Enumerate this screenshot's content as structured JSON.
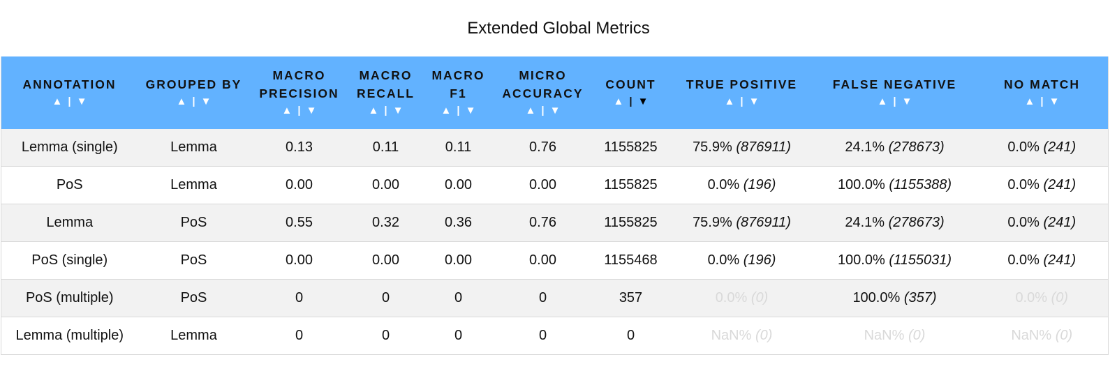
{
  "title": "Extended Global Metrics",
  "table": {
    "columns": [
      {
        "key": "annotation",
        "label_lines": [
          "ANNOTATION"
        ],
        "sort_up": "▲",
        "sort_sep": "|",
        "sort_down": "▼",
        "active": ""
      },
      {
        "key": "grouped_by",
        "label_lines": [
          "GROUPED BY"
        ],
        "sort_up": "▲",
        "sort_sep": "|",
        "sort_down": "▼",
        "active": ""
      },
      {
        "key": "macro_precision",
        "label_lines": [
          "MACRO",
          "PRECISION"
        ],
        "sort_up": "▲",
        "sort_sep": "|",
        "sort_down": "▼",
        "active": ""
      },
      {
        "key": "macro_recall",
        "label_lines": [
          "MACRO",
          "RECALL"
        ],
        "sort_up": "▲",
        "sort_sep": "|",
        "sort_down": "▼",
        "active": ""
      },
      {
        "key": "macro_f1",
        "label_lines": [
          "MACRO",
          "F1"
        ],
        "sort_up": "▲",
        "sort_sep": "|",
        "sort_down": "▼",
        "active": ""
      },
      {
        "key": "micro_accuracy",
        "label_lines": [
          "MICRO",
          "ACCURACY"
        ],
        "sort_up": "▲",
        "sort_sep": "|",
        "sort_down": "▼",
        "active": ""
      },
      {
        "key": "count",
        "label_lines": [
          "COUNT"
        ],
        "sort_up": "▲",
        "sort_sep": "|",
        "sort_down": "▼",
        "active": "down"
      },
      {
        "key": "true_positive",
        "label_lines": [
          "TRUE POSITIVE"
        ],
        "sort_up": "▲",
        "sort_sep": "|",
        "sort_down": "▼",
        "active": ""
      },
      {
        "key": "false_negative",
        "label_lines": [
          "FALSE NEGATIVE"
        ],
        "sort_up": "▲",
        "sort_sep": "|",
        "sort_down": "▼",
        "active": ""
      },
      {
        "key": "no_match",
        "label_lines": [
          "NO MATCH"
        ],
        "sort_up": "▲",
        "sort_sep": "|",
        "sort_down": "▼",
        "active": ""
      }
    ],
    "rows": [
      {
        "annotation": "Lemma (single)",
        "grouped_by": "Lemma",
        "macro_precision": "0.13",
        "macro_recall": "0.11",
        "macro_f1": "0.11",
        "micro_accuracy": "0.76",
        "count": "1155825",
        "true_positive": {
          "pct": "75.9%",
          "n": "(876911)",
          "muted": false
        },
        "false_negative": {
          "pct": "24.1%",
          "n": "(278673)",
          "muted": false
        },
        "no_match": {
          "pct": "0.0%",
          "n": "(241)",
          "muted": false
        }
      },
      {
        "annotation": "PoS",
        "grouped_by": "Lemma",
        "macro_precision": "0.00",
        "macro_recall": "0.00",
        "macro_f1": "0.00",
        "micro_accuracy": "0.00",
        "count": "1155825",
        "true_positive": {
          "pct": "0.0%",
          "n": "(196)",
          "muted": false
        },
        "false_negative": {
          "pct": "100.0%",
          "n": "(1155388)",
          "muted": false
        },
        "no_match": {
          "pct": "0.0%",
          "n": "(241)",
          "muted": false
        }
      },
      {
        "annotation": "Lemma",
        "grouped_by": "PoS",
        "macro_precision": "0.55",
        "macro_recall": "0.32",
        "macro_f1": "0.36",
        "micro_accuracy": "0.76",
        "count": "1155825",
        "true_positive": {
          "pct": "75.9%",
          "n": "(876911)",
          "muted": false
        },
        "false_negative": {
          "pct": "24.1%",
          "n": "(278673)",
          "muted": false
        },
        "no_match": {
          "pct": "0.0%",
          "n": "(241)",
          "muted": false
        }
      },
      {
        "annotation": "PoS (single)",
        "grouped_by": "PoS",
        "macro_precision": "0.00",
        "macro_recall": "0.00",
        "macro_f1": "0.00",
        "micro_accuracy": "0.00",
        "count": "1155468",
        "true_positive": {
          "pct": "0.0%",
          "n": "(196)",
          "muted": false
        },
        "false_negative": {
          "pct": "100.0%",
          "n": "(1155031)",
          "muted": false
        },
        "no_match": {
          "pct": "0.0%",
          "n": "(241)",
          "muted": false
        }
      },
      {
        "annotation": "PoS (multiple)",
        "grouped_by": "PoS",
        "macro_precision": "0",
        "macro_recall": "0",
        "macro_f1": "0",
        "micro_accuracy": "0",
        "count": "357",
        "true_positive": {
          "pct": "0.0%",
          "n": "(0)",
          "muted": true
        },
        "false_negative": {
          "pct": "100.0%",
          "n": "(357)",
          "muted": false
        },
        "no_match": {
          "pct": "0.0%",
          "n": "(0)",
          "muted": true
        }
      },
      {
        "annotation": "Lemma (multiple)",
        "grouped_by": "Lemma",
        "macro_precision": "0",
        "macro_recall": "0",
        "macro_f1": "0",
        "micro_accuracy": "0",
        "count": "0",
        "true_positive": {
          "pct": "NaN%",
          "n": "(0)",
          "muted": true
        },
        "false_negative": {
          "pct": "NaN%",
          "n": "(0)",
          "muted": true
        },
        "no_match": {
          "pct": "NaN%",
          "n": "(0)",
          "muted": true
        }
      }
    ]
  },
  "colors": {
    "header_bg": "#62b2ff",
    "row_alt_bg": "#f2f2f2",
    "muted_text": "#d9d9d9",
    "border": "#d8d8d8"
  }
}
